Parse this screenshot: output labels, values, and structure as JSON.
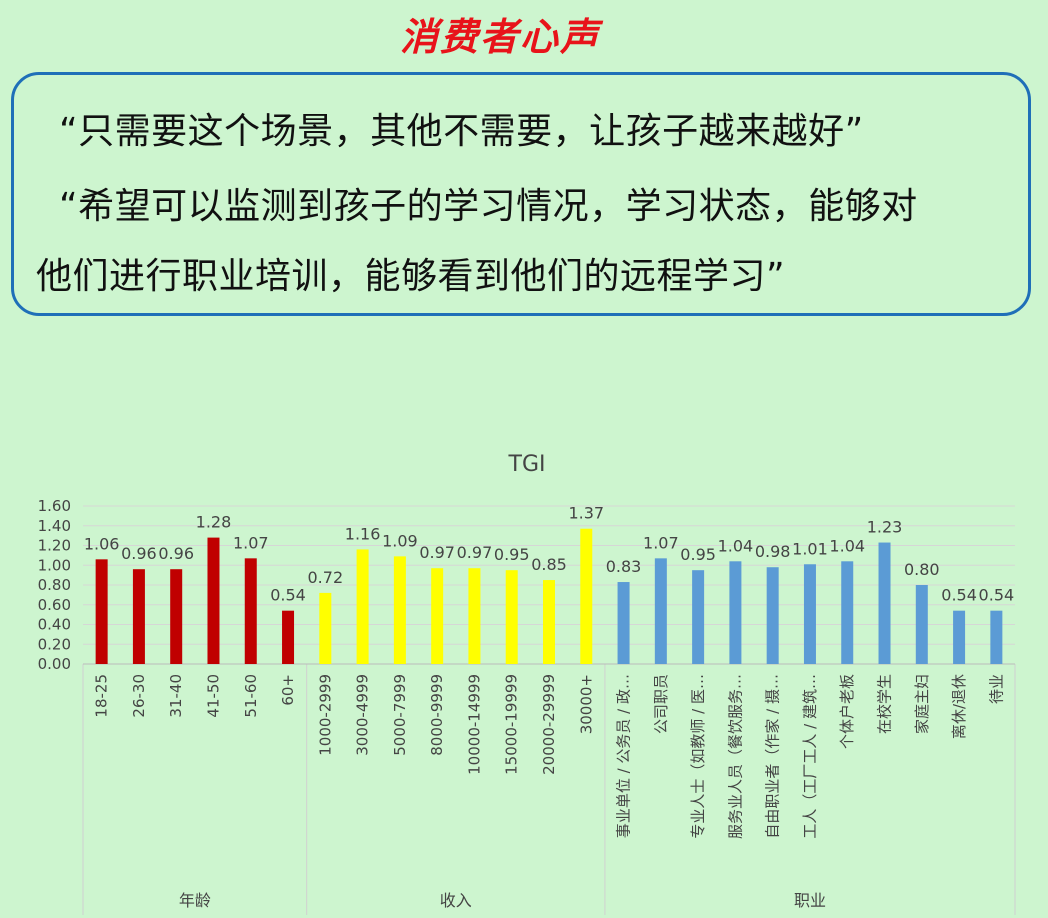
{
  "title": "消费者心声",
  "quotes": [
    "“只需要这个场景，其他不需要，让孩子越来越好”",
    "“希望可以监测到孩子的学习情况，学习状态，能够对",
    "他们进行职业培训，能够看到他们的远程学习”"
  ],
  "chart_data": {
    "type": "bar",
    "title": "TGI",
    "ylim": [
      0,
      1.6
    ],
    "yticks": [
      "0.00",
      "0.20",
      "0.40",
      "0.60",
      "0.80",
      "1.00",
      "1.20",
      "1.40",
      "1.60"
    ],
    "grid": true,
    "groups": [
      {
        "name": "年龄",
        "color": "#c00000",
        "categories": [
          "18-25",
          "26-30",
          "31-40",
          "41-50",
          "51-60",
          "60+"
        ],
        "values": [
          1.06,
          0.96,
          0.96,
          1.28,
          1.07,
          0.54
        ],
        "labels": [
          "1.06",
          "0.96",
          "0.96",
          "1.28",
          "1.07",
          "0.54"
        ]
      },
      {
        "name": "收入",
        "color": "#ffff00",
        "categories": [
          "1000-2999",
          "3000-4999",
          "5000-7999",
          "8000-9999",
          "10000-14999",
          "15000-19999",
          "20000-29999",
          "30000+"
        ],
        "values": [
          0.72,
          1.16,
          1.09,
          0.97,
          0.97,
          0.95,
          0.85,
          1.37
        ],
        "labels": [
          "0.72",
          "1.16",
          "1.09",
          "0.97",
          "0.97",
          "0.95",
          "0.85",
          "1.37"
        ]
      },
      {
        "name": "职业",
        "color": "#5b9bd5",
        "categories": [
          "事业单位 / 公务员 / 政…",
          "公司职员",
          "专业人士（如教师 / 医…",
          "服务业人员（餐饮服务…",
          "自由职业者（作家 / 摄…",
          "工人（工厂工人 / 建筑…",
          "个体户老板",
          "在校学生",
          "家庭主妇",
          "离休/退休",
          "待业"
        ],
        "values": [
          0.83,
          1.07,
          0.95,
          1.04,
          0.98,
          1.01,
          1.04,
          1.23,
          0.8,
          0.54,
          0.54
        ],
        "labels": [
          "0.83",
          "1.07",
          "0.95",
          "1.04",
          "0.98",
          "1.01",
          "1.04",
          "1.23",
          "0.80",
          "0.54",
          "0.54"
        ]
      }
    ]
  }
}
